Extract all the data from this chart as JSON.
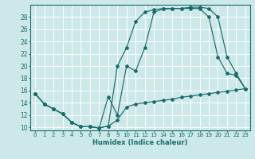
{
  "xlabel": "Humidex (Indice chaleur)",
  "background_color": "#cde8e8",
  "grid_color": "#ffffff",
  "line_color": "#1a6b6b",
  "xlim": [
    -0.5,
    23.5
  ],
  "ylim": [
    9.5,
    30.0
  ],
  "xticks": [
    0,
    1,
    2,
    3,
    4,
    5,
    6,
    7,
    8,
    9,
    10,
    11,
    12,
    13,
    14,
    15,
    16,
    17,
    18,
    19,
    20,
    21,
    22,
    23
  ],
  "yticks": [
    10,
    12,
    14,
    16,
    18,
    20,
    22,
    24,
    26,
    28
  ],
  "line1_x": [
    0,
    1,
    2,
    3,
    4,
    5,
    6,
    7,
    8,
    9,
    10,
    11,
    12,
    13,
    14,
    15,
    16,
    17,
    18,
    19,
    20,
    21,
    22,
    23
  ],
  "line1_y": [
    15.5,
    13.8,
    13.0,
    12.2,
    10.8,
    10.1,
    10.1,
    9.9,
    10.2,
    11.2,
    13.3,
    13.8,
    14.0,
    14.2,
    14.4,
    14.6,
    14.9,
    15.1,
    15.3,
    15.5,
    15.7,
    15.9,
    16.1,
    16.3
  ],
  "line2_x": [
    0,
    1,
    2,
    3,
    4,
    5,
    6,
    7,
    8,
    9,
    10,
    11,
    12,
    13,
    14,
    15,
    16,
    17,
    18,
    19,
    20,
    21,
    22,
    23
  ],
  "line2_y": [
    15.5,
    13.8,
    13.0,
    12.2,
    10.8,
    10.1,
    10.1,
    9.9,
    10.2,
    20.0,
    23.0,
    27.3,
    28.8,
    29.2,
    29.4,
    29.4,
    29.4,
    29.4,
    29.4,
    28.0,
    21.5,
    18.8,
    18.5,
    16.3
  ],
  "line3_x": [
    0,
    1,
    2,
    3,
    4,
    5,
    6,
    7,
    8,
    9,
    10,
    11,
    12,
    13,
    14,
    15,
    16,
    17,
    18,
    19,
    20,
    21,
    22,
    23
  ],
  "line3_y": [
    15.5,
    13.8,
    13.0,
    12.2,
    10.8,
    10.1,
    10.1,
    9.9,
    15.0,
    12.0,
    20.0,
    19.2,
    23.0,
    28.8,
    29.3,
    29.4,
    29.4,
    29.6,
    29.6,
    29.4,
    28.0,
    21.5,
    18.8,
    16.3
  ]
}
